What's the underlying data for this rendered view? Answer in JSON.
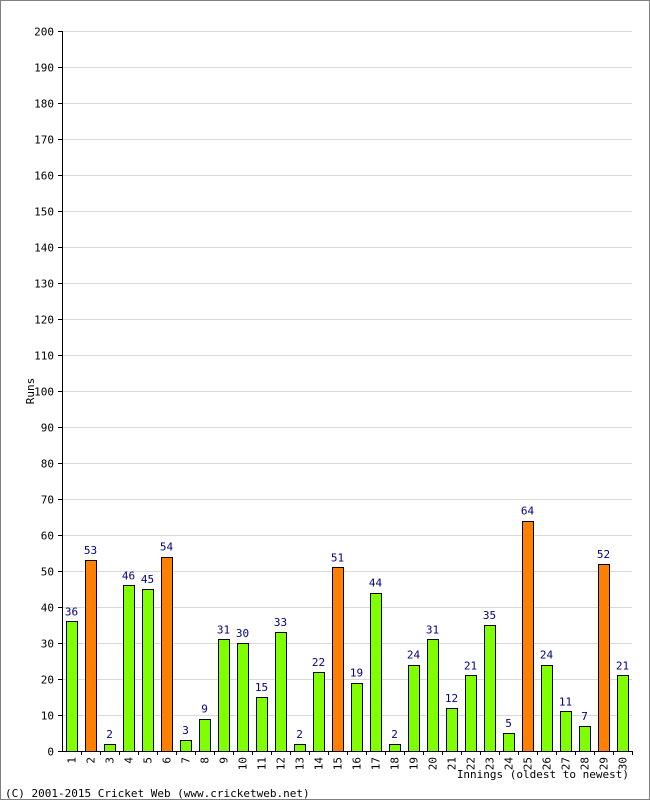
{
  "chart_data": {
    "type": "bar",
    "categories": [
      "1",
      "2",
      "3",
      "4",
      "5",
      "6",
      "7",
      "8",
      "9",
      "10",
      "11",
      "12",
      "13",
      "14",
      "15",
      "16",
      "17",
      "18",
      "19",
      "20",
      "21",
      "22",
      "23",
      "24",
      "25",
      "26",
      "27",
      "28",
      "29",
      "30"
    ],
    "values": [
      36,
      53,
      2,
      46,
      45,
      54,
      3,
      9,
      31,
      30,
      15,
      33,
      2,
      22,
      51,
      19,
      44,
      2,
      24,
      31,
      12,
      21,
      35,
      5,
      64,
      24,
      11,
      7,
      52,
      21
    ],
    "highlight": [
      false,
      true,
      false,
      false,
      false,
      true,
      false,
      false,
      false,
      false,
      false,
      false,
      false,
      false,
      true,
      false,
      false,
      false,
      false,
      false,
      false,
      false,
      false,
      false,
      true,
      false,
      false,
      false,
      true,
      false
    ],
    "xlabel": "Innings (oldest to newest)",
    "ylabel": "Runs",
    "ylim": [
      0,
      200
    ],
    "ytick_step": 10,
    "grid": true,
    "colors": {
      "normal_bar": "#80ff00",
      "highlight_bar": "#ff8000",
      "bar_outline": "#000000",
      "value_label": "#000080",
      "grid": "#d8d8d8"
    }
  },
  "footer": {
    "copyright": "(C) 2001-2015 Cricket Web (www.cricketweb.net)"
  }
}
